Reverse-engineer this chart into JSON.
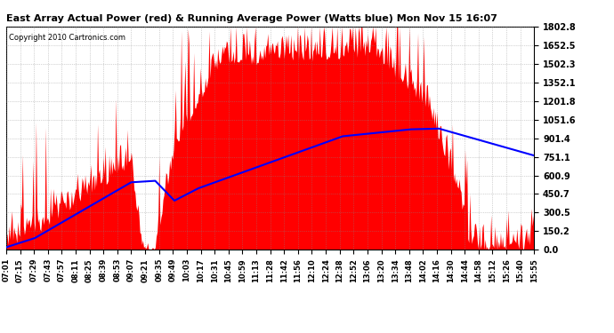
{
  "title": "East Array Actual Power (red) & Running Average Power (Watts blue) Mon Nov 15 16:07",
  "copyright": "Copyright 2010 Cartronics.com",
  "yticks": [
    0.0,
    150.2,
    300.5,
    450.7,
    600.9,
    751.1,
    901.4,
    1051.6,
    1201.8,
    1352.1,
    1502.3,
    1652.5,
    1802.8
  ],
  "ymax": 1802.8,
  "ymin": 0.0,
  "xtick_labels": [
    "07:01",
    "07:15",
    "07:29",
    "07:43",
    "07:57",
    "08:11",
    "08:25",
    "08:39",
    "08:53",
    "09:07",
    "09:21",
    "09:35",
    "09:49",
    "10:03",
    "10:17",
    "10:31",
    "10:45",
    "10:59",
    "11:13",
    "11:28",
    "11:42",
    "11:56",
    "12:10",
    "12:24",
    "12:38",
    "12:52",
    "13:06",
    "13:20",
    "13:34",
    "13:48",
    "14:02",
    "14:16",
    "14:30",
    "14:44",
    "14:58",
    "15:12",
    "15:26",
    "15:40",
    "15:55"
  ],
  "red_color": "#ff0000",
  "blue_color": "#0000ff",
  "bg_color": "#ffffff",
  "grid_color": "#888888",
  "fig_bg": "#ffffff"
}
